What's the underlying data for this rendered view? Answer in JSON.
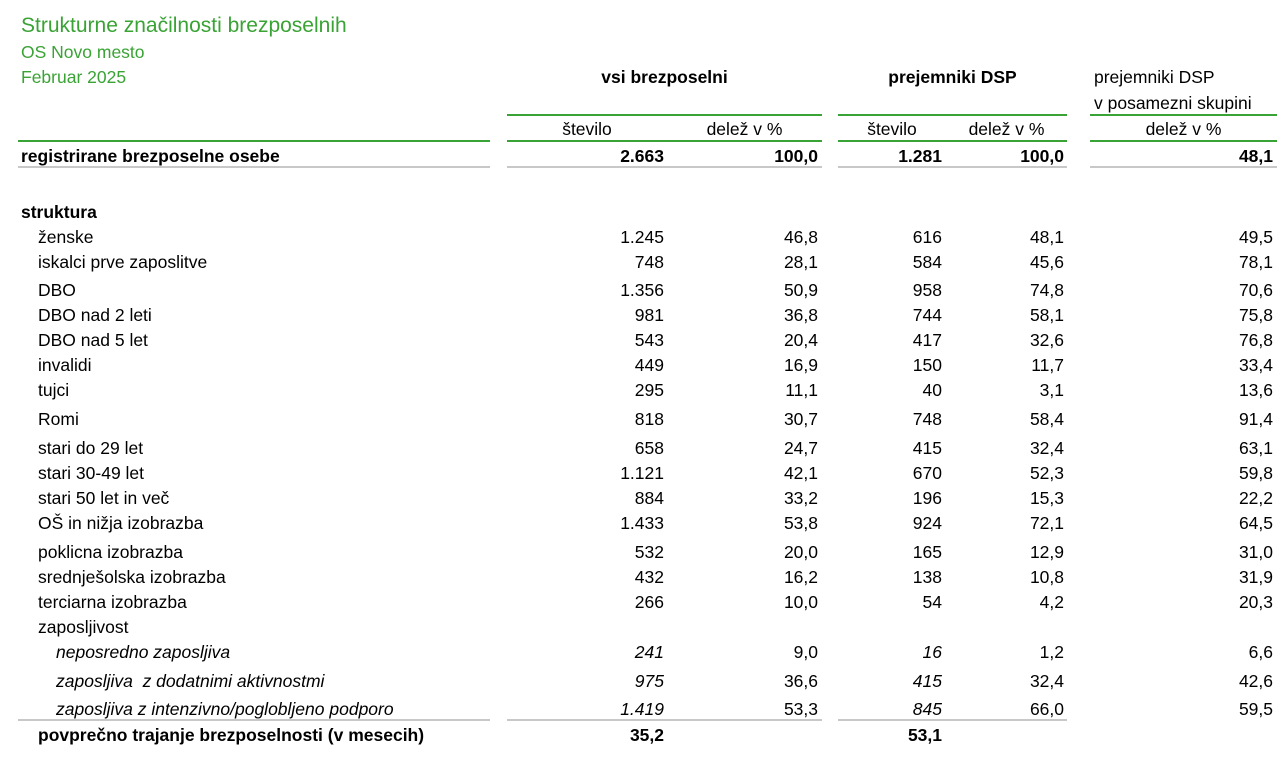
{
  "header": {
    "title": "Strukturne značilnosti brezposelnih",
    "office": "OS Novo mesto",
    "period": "Februar 2025",
    "group_all": "vsi brezposelni",
    "group_dsp": "prejemniki DSP",
    "group_share_line1": "prejemniki DSP",
    "group_share_line2": "v posamezni skupini",
    "col_number_all": "število",
    "col_share_all": "delež v %",
    "col_number_dsp": "število",
    "col_share_dsp": "delež v %",
    "col_share_group": "delež v %"
  },
  "total": {
    "label": "registrirane brezposelne osebe",
    "all_n": "2.663",
    "all_pct": "100,0",
    "dsp_n": "1.281",
    "dsp_pct": "100,0",
    "grp_pct": "48,1"
  },
  "section_label": "struktura",
  "rows": [
    {
      "label": "ženske",
      "all_n": "1.245",
      "all_pct": "46,8",
      "dsp_n": "616",
      "dsp_pct": "48,1",
      "grp_pct": "49,5"
    },
    {
      "label": "iskalci prve zaposlitve",
      "all_n": "748",
      "all_pct": "28,1",
      "dsp_n": "584",
      "dsp_pct": "45,6",
      "grp_pct": "78,1"
    },
    {
      "label": "DBO",
      "all_n": "1.356",
      "all_pct": "50,9",
      "dsp_n": "958",
      "dsp_pct": "74,8",
      "grp_pct": "70,6"
    },
    {
      "label": "DBO nad 2 leti",
      "all_n": "981",
      "all_pct": "36,8",
      "dsp_n": "744",
      "dsp_pct": "58,1",
      "grp_pct": "75,8"
    },
    {
      "label": "DBO nad 5 let",
      "all_n": "543",
      "all_pct": "20,4",
      "dsp_n": "417",
      "dsp_pct": "32,6",
      "grp_pct": "76,8"
    },
    {
      "label": "invalidi",
      "all_n": "449",
      "all_pct": "16,9",
      "dsp_n": "150",
      "dsp_pct": "11,7",
      "grp_pct": "33,4"
    },
    {
      "label": "tujci",
      "all_n": "295",
      "all_pct": "11,1",
      "dsp_n": "40",
      "dsp_pct": "3,1",
      "grp_pct": "13,6"
    },
    {
      "label": "Romi",
      "all_n": "818",
      "all_pct": "30,7",
      "dsp_n": "748",
      "dsp_pct": "58,4",
      "grp_pct": "91,4"
    },
    {
      "label": "stari do 29 let",
      "all_n": "658",
      "all_pct": "24,7",
      "dsp_n": "415",
      "dsp_pct": "32,4",
      "grp_pct": "63,1"
    },
    {
      "label": "stari 30-49 let",
      "all_n": "1.121",
      "all_pct": "42,1",
      "dsp_n": "670",
      "dsp_pct": "52,3",
      "grp_pct": "59,8"
    },
    {
      "label": "stari 50 let in več",
      "all_n": "884",
      "all_pct": "33,2",
      "dsp_n": "196",
      "dsp_pct": "15,3",
      "grp_pct": "22,2"
    },
    {
      "label": "OŠ in nižja izobrazba",
      "all_n": "1.433",
      "all_pct": "53,8",
      "dsp_n": "924",
      "dsp_pct": "72,1",
      "grp_pct": "64,5"
    },
    {
      "label": "poklicna izobrazba",
      "all_n": "532",
      "all_pct": "20,0",
      "dsp_n": "165",
      "dsp_pct": "12,9",
      "grp_pct": "31,0"
    },
    {
      "label": "srednješolska izobrazba",
      "all_n": "432",
      "all_pct": "16,2",
      "dsp_n": "138",
      "dsp_pct": "10,8",
      "grp_pct": "31,9"
    },
    {
      "label": "terciarna izobrazba",
      "all_n": "266",
      "all_pct": "10,0",
      "dsp_n": "54",
      "dsp_pct": "4,2",
      "grp_pct": "20,3"
    }
  ],
  "employability_label": "zaposljivost",
  "employability_rows": [
    {
      "label": "neposredno zaposljiva",
      "all_n": "241",
      "all_pct": "9,0",
      "dsp_n": "16",
      "dsp_pct": "1,2",
      "grp_pct": "6,6"
    },
    {
      "label": "zaposljiva  z dodatnimi aktivnostmi",
      "all_n": "975",
      "all_pct": "36,6",
      "dsp_n": "415",
      "dsp_pct": "32,4",
      "grp_pct": "42,6"
    },
    {
      "label": "zaposljiva z intenzivno/poglobljeno podporo",
      "all_n": "1.419",
      "all_pct": "53,3",
      "dsp_n": "845",
      "dsp_pct": "66,0",
      "grp_pct": "59,5"
    }
  ],
  "duration": {
    "label": "povprečno trajanje brezposelnosti (v mesecih)",
    "all_n": "35,2",
    "dsp_n": "53,1"
  },
  "colors": {
    "accent": "#3aa335",
    "separator": "#c8c8c8"
  }
}
